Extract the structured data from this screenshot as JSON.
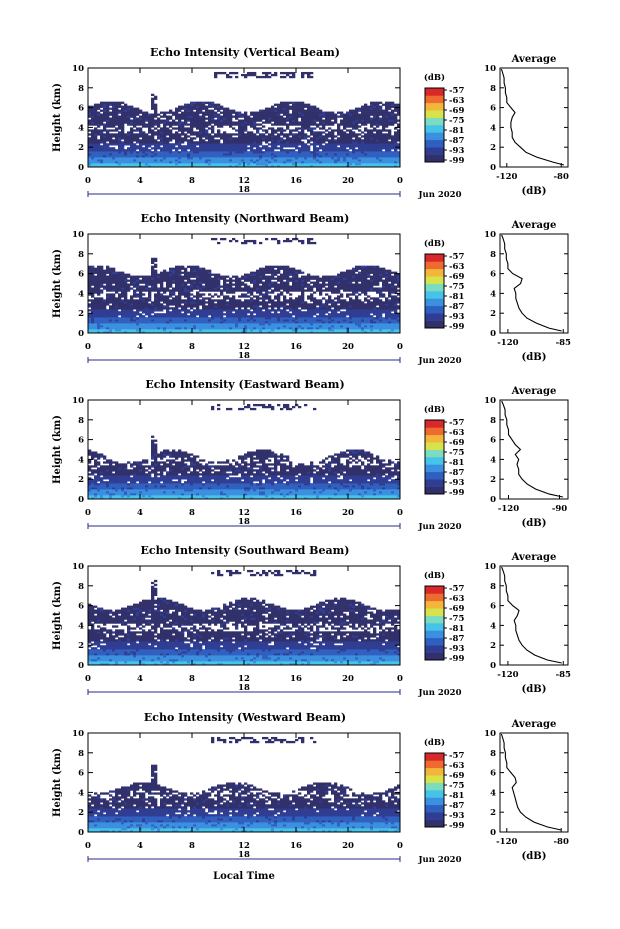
{
  "chart_data": [
    {
      "type": "heatmap",
      "title": "Echo Intensity (Vertical Beam)",
      "ylabel": "Height (km)",
      "ylim": [
        0,
        10
      ],
      "yticks": [
        "0",
        "2",
        "4",
        "6",
        "8",
        "10"
      ],
      "xlim": [
        0,
        24
      ],
      "xticks": [
        "0",
        "4",
        "8",
        "12",
        "16",
        "20",
        "0"
      ],
      "day_label": "18",
      "date_label": "Jun 2020",
      "colorbar": {
        "unit": "(dB)",
        "ticks": [
          "-57",
          "-63",
          "-69",
          "-75",
          "-81",
          "-87",
          "-93",
          "-99"
        ]
      },
      "cloud_top_km": 6.1,
      "profile": {
        "title": "Average",
        "xlabel": "(dB)",
        "xticks": [
          "-120",
          "-80"
        ],
        "xlim": [
          -125,
          -75
        ],
        "heights": [
          0.2,
          0.5,
          1.0,
          1.5,
          2.0,
          2.5,
          3.0,
          3.5,
          4.0,
          4.5,
          5.0,
          5.5,
          6.0,
          6.5,
          7.0,
          7.5,
          8.0,
          8.5,
          9.0,
          9.5,
          9.9
        ],
        "values": [
          -78,
          -86,
          -98,
          -106,
          -110,
          -114,
          -116,
          -116,
          -117,
          -117,
          -116,
          -114,
          -117,
          -120,
          -120,
          -121,
          -121,
          -122,
          -122,
          -123,
          -124
        ]
      }
    },
    {
      "type": "heatmap",
      "title": "Echo Intensity (Northward Beam)",
      "ylabel": "Height (km)",
      "ylim": [
        0,
        10
      ],
      "yticks": [
        "0",
        "2",
        "4",
        "6",
        "8",
        "10"
      ],
      "xlim": [
        0,
        24
      ],
      "xticks": [
        "0",
        "4",
        "8",
        "12",
        "16",
        "20",
        "0"
      ],
      "day_label": "18",
      "date_label": "Jun 2020",
      "colorbar": {
        "unit": "(dB)",
        "ticks": [
          "-57",
          "-63",
          "-69",
          "-75",
          "-81",
          "-87",
          "-93",
          "-99"
        ]
      },
      "cloud_top_km": 6.3,
      "profile": {
        "title": "Average",
        "xlabel": "(dB)",
        "xticks": [
          "-120",
          "-85"
        ],
        "xlim": [
          -125,
          -82
        ],
        "heights": [
          0.2,
          0.5,
          1.0,
          1.5,
          2.0,
          2.5,
          3.0,
          3.5,
          4.0,
          4.5,
          5.0,
          5.5,
          6.0,
          6.5,
          7.0,
          7.5,
          8.0,
          8.5,
          9.0,
          9.5,
          9.9
        ],
        "values": [
          -86,
          -94,
          -102,
          -108,
          -111,
          -113,
          -114,
          -115,
          -115,
          -116,
          -112,
          -111,
          -117,
          -120,
          -120,
          -121,
          -121,
          -122,
          -122,
          -123,
          -124
        ]
      }
    },
    {
      "type": "heatmap",
      "title": "Echo Intensity (Eastward Beam)",
      "ylabel": "Height (km)",
      "ylim": [
        0,
        10
      ],
      "yticks": [
        "0",
        "2",
        "4",
        "6",
        "8",
        "10"
      ],
      "xlim": [
        0,
        24
      ],
      "xticks": [
        "0",
        "4",
        "8",
        "12",
        "16",
        "20",
        "0"
      ],
      "day_label": "18",
      "date_label": "Jun 2020",
      "colorbar": {
        "unit": "(dB)",
        "ticks": [
          "-57",
          "-63",
          "-69",
          "-75",
          "-81",
          "-87",
          "-93",
          "-99"
        ]
      },
      "cloud_top_km": 4.4,
      "profile": {
        "title": "Average",
        "xlabel": "(dB)",
        "xticks": [
          "-120",
          "-90"
        ],
        "xlim": [
          -125,
          -85
        ],
        "heights": [
          0.2,
          0.5,
          1.0,
          1.5,
          2.0,
          2.5,
          3.0,
          3.5,
          4.0,
          4.5,
          5.0,
          5.5,
          6.0,
          6.5,
          7.0,
          7.5,
          8.0,
          8.5,
          9.0,
          9.5,
          9.9
        ],
        "values": [
          -88,
          -96,
          -104,
          -109,
          -112,
          -114,
          -114,
          -115,
          -114,
          -116,
          -113,
          -116,
          -118,
          -120,
          -120,
          -121,
          -121,
          -122,
          -122,
          -123,
          -124
        ]
      }
    },
    {
      "type": "heatmap",
      "title": "Echo Intensity (Southward Beam)",
      "ylabel": "Height (km)",
      "ylim": [
        0,
        10
      ],
      "yticks": [
        "0",
        "2",
        "4",
        "6",
        "8",
        "10"
      ],
      "xlim": [
        0,
        24
      ],
      "xticks": [
        "0",
        "4",
        "8",
        "12",
        "16",
        "20",
        "0"
      ],
      "day_label": "18",
      "date_label": "Jun 2020",
      "colorbar": {
        "unit": "(dB)",
        "ticks": [
          "-57",
          "-63",
          "-69",
          "-75",
          "-81",
          "-87",
          "-93",
          "-99"
        ]
      },
      "cloud_top_km": 6.2,
      "profile": {
        "title": "Average",
        "xlabel": "(dB)",
        "xticks": [
          "-120",
          "-85"
        ],
        "xlim": [
          -125,
          -82
        ],
        "heights": [
          0.2,
          0.5,
          1.0,
          1.5,
          2.0,
          2.5,
          3.0,
          3.5,
          4.0,
          4.5,
          5.0,
          5.5,
          6.0,
          6.5,
          7.0,
          7.5,
          8.0,
          8.5,
          9.0,
          9.5,
          9.9
        ],
        "values": [
          -86,
          -95,
          -103,
          -108,
          -111,
          -113,
          -114,
          -115,
          -115,
          -116,
          -114,
          -113,
          -117,
          -120,
          -120,
          -121,
          -121,
          -122,
          -122,
          -123,
          -124
        ]
      }
    },
    {
      "type": "heatmap",
      "title": "Echo Intensity (Westward Beam)",
      "ylabel": "Height (km)",
      "ylim": [
        0,
        10
      ],
      "yticks": [
        "0",
        "2",
        "4",
        "6",
        "8",
        "10"
      ],
      "xlim": [
        0,
        24
      ],
      "xticks": [
        "0",
        "4",
        "8",
        "12",
        "16",
        "20",
        "0"
      ],
      "day_label": "18",
      "date_label": "Jun 2020",
      "xlabel": "Local Time",
      "colorbar": {
        "unit": "(dB)",
        "ticks": [
          "-57",
          "-63",
          "-69",
          "-75",
          "-81",
          "-87",
          "-93",
          "-99"
        ]
      },
      "cloud_top_km": 4.5,
      "profile": {
        "title": "Average",
        "xlabel": "(dB)",
        "xticks": [
          "-120",
          "-80"
        ],
        "xlim": [
          -125,
          -75
        ],
        "heights": [
          0.2,
          0.5,
          1.0,
          1.5,
          2.0,
          2.5,
          3.0,
          3.5,
          4.0,
          4.5,
          5.0,
          5.5,
          6.0,
          6.5,
          7.0,
          7.5,
          8.0,
          8.5,
          9.0,
          9.5,
          9.9
        ],
        "values": [
          -80,
          -90,
          -100,
          -106,
          -110,
          -112,
          -113,
          -114,
          -115,
          -116,
          -113,
          -114,
          -117,
          -120,
          -120,
          -121,
          -121,
          -122,
          -122,
          -123,
          -124
        ]
      }
    }
  ],
  "colors": {
    "colormap": [
      "#31306b",
      "#2f3d93",
      "#2f5fbf",
      "#3a8fdf",
      "#45c3e8",
      "#7cdcc0",
      "#d8e24a",
      "#f2b63a",
      "#ee6a2f",
      "#d8282a"
    ]
  }
}
